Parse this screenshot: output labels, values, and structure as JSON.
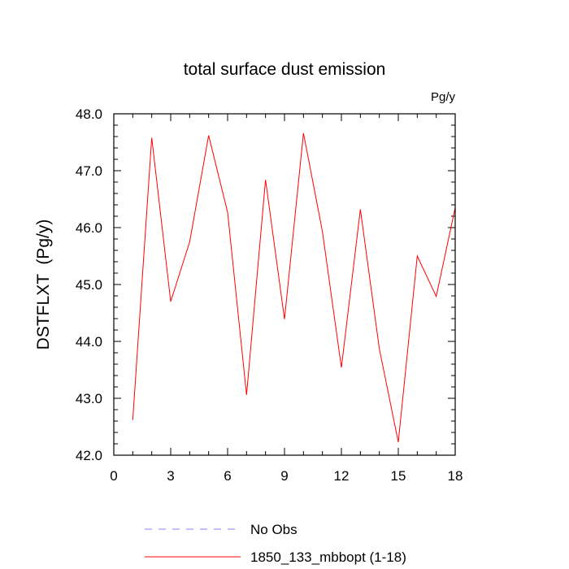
{
  "chart_data": {
    "type": "line",
    "title": "total surface dust emission",
    "units_label": "Pg/y",
    "ylabel": "DSTFLXT  (Pg/y)",
    "xlabel": "",
    "xlim": [
      0,
      18
    ],
    "ylim": [
      42.0,
      48.0
    ],
    "x_ticks": [
      0,
      3,
      6,
      9,
      12,
      15,
      18
    ],
    "x_tick_labels": [
      "0",
      "3",
      "6",
      "9",
      "12",
      "15",
      "18"
    ],
    "y_ticks": [
      42.0,
      43.0,
      44.0,
      45.0,
      46.0,
      47.0,
      48.0
    ],
    "y_tick_labels": [
      "42.0",
      "43.0",
      "44.0",
      "45.0",
      "46.0",
      "47.0",
      "48.0"
    ],
    "grid": false,
    "legend_position": "bottom",
    "series": [
      {
        "name": "1850_133_mbbopt (1-18)",
        "color": "#ff0000",
        "style": "solid",
        "x": [
          1,
          2,
          3,
          4,
          5,
          6,
          7,
          8,
          9,
          10,
          11,
          12,
          13,
          14,
          15,
          16,
          17,
          18
        ],
        "values": [
          42.62,
          47.58,
          44.7,
          45.75,
          47.62,
          46.27,
          43.06,
          46.84,
          44.39,
          47.66,
          45.93,
          43.54,
          46.32,
          43.87,
          42.23,
          45.5,
          44.79,
          46.35
        ]
      }
    ],
    "legend": [
      {
        "label": "No Obs",
        "color": "#8080ff",
        "style": "dashed"
      },
      {
        "label": "1850_133_mbbopt (1-18)",
        "color": "#ff0000",
        "style": "solid"
      }
    ]
  }
}
